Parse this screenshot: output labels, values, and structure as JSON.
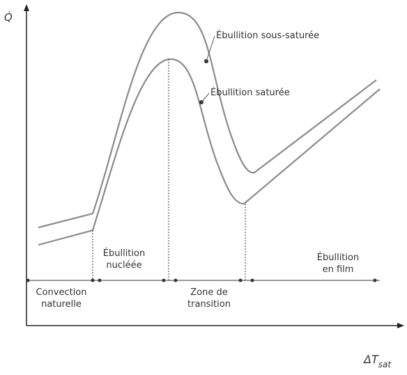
{
  "y_axis": {
    "label": "Q̇"
  },
  "x_axis": {
    "symbol": "ΔT",
    "subscript": "sat"
  },
  "curves": [
    {
      "label": "Ébullition sous-saturée"
    },
    {
      "label": "Ébullition saturée"
    }
  ],
  "regions": [
    {
      "lines": [
        "Convection",
        "naturelle"
      ]
    },
    {
      "lines": [
        "Ébullition",
        "nucléée"
      ]
    },
    {
      "lines": [
        "Zone de",
        "transition"
      ]
    },
    {
      "lines": [
        "Ébullition",
        "en film"
      ]
    }
  ]
}
